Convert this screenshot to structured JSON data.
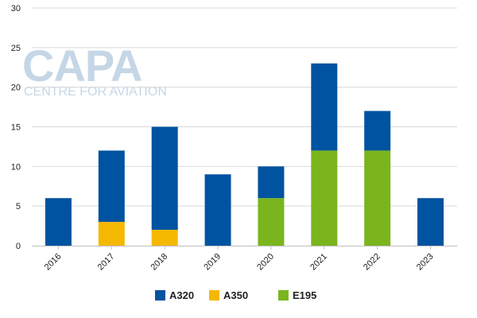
{
  "watermark": {
    "logo_text": "CAPA",
    "tagline": "CENTRE FOR AVIATION"
  },
  "chart_data": {
    "type": "bar",
    "stacked": true,
    "categories": [
      "2016",
      "2017",
      "2018",
      "2019",
      "2020",
      "2021",
      "2022",
      "2023"
    ],
    "series": [
      {
        "name": "E195",
        "color": "#7ab51d",
        "values": [
          0,
          0,
          0,
          0,
          6,
          12,
          12,
          0
        ]
      },
      {
        "name": "A350",
        "color": "#f5b800",
        "values": [
          0,
          3,
          2,
          0,
          0,
          0,
          0,
          0
        ]
      },
      {
        "name": "A320",
        "color": "#0053a0",
        "values": [
          6,
          9,
          13,
          9,
          4,
          11,
          5,
          6
        ]
      }
    ],
    "legend_order": [
      "A320",
      "A350",
      "E195"
    ],
    "yticks": [
      "0",
      "5",
      "10",
      "15",
      "20",
      "25",
      "30"
    ],
    "ylim": [
      0,
      30
    ],
    "title": "",
    "xlabel": "",
    "ylabel": "",
    "grid": true,
    "legend_position": "bottom"
  }
}
